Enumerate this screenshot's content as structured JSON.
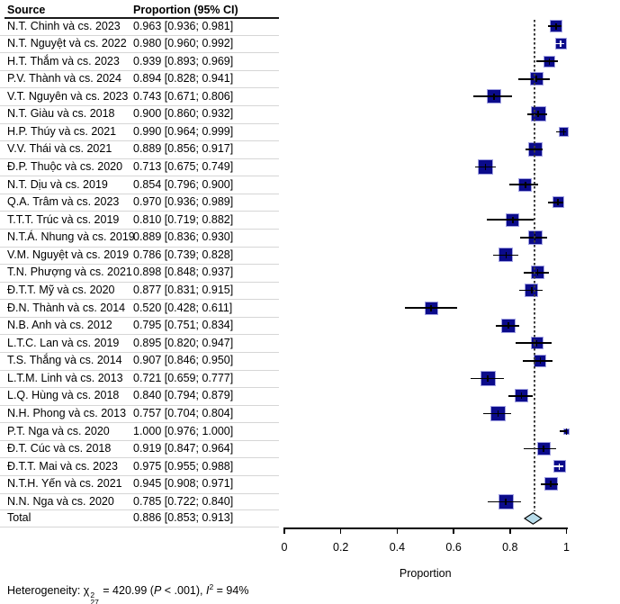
{
  "table": {
    "col_source": "Source",
    "col_proportion": "Proportion (95% CI)",
    "total_label": "Total",
    "total_value": "0.886 [0.853; 0.913]"
  },
  "chart_data": {
    "type": "forest",
    "xlabel": "Proportion",
    "xlim": [
      0,
      1
    ],
    "xticks": [
      "0",
      "0.2",
      "0.4",
      "0.6",
      "0.8",
      "1"
    ],
    "ref_line": 0.886,
    "grid": false,
    "studies": [
      {
        "label": "N.T. Chinh và cs. 2023",
        "text": "0.963 [0.936; 0.981]",
        "est": 0.963,
        "lo": 0.936,
        "hi": 0.981,
        "size": 14
      },
      {
        "label": "N.T. Nguyệt và cs. 2022",
        "text": "0.980 [0.960; 0.992]",
        "est": 0.98,
        "lo": 0.96,
        "hi": 0.992,
        "size": 13
      },
      {
        "label": "H.T. Thắm và cs. 2023",
        "text": "0.939 [0.893; 0.969]",
        "est": 0.939,
        "lo": 0.893,
        "hi": 0.969,
        "size": 13
      },
      {
        "label": "P.V. Thành và cs. 2024",
        "text": "0.894 [0.828; 0.941]",
        "est": 0.894,
        "lo": 0.828,
        "hi": 0.941,
        "size": 15
      },
      {
        "label": "V.T. Nguyên và cs. 2023",
        "text": "0.743 [0.671; 0.806]",
        "est": 0.743,
        "lo": 0.671,
        "hi": 0.806,
        "size": 16
      },
      {
        "label": "N.T. Giàu và cs. 2018",
        "text": "0.900 [0.860; 0.932]",
        "est": 0.9,
        "lo": 0.86,
        "hi": 0.932,
        "size": 17
      },
      {
        "label": "H.P. Thúy và cs. 2021",
        "text": "0.990 [0.964; 0.999]",
        "est": 0.99,
        "lo": 0.964,
        "hi": 0.999,
        "size": 11
      },
      {
        "label": "V.V. Thái và cs. 2021",
        "text": "0.889 [0.856; 0.917]",
        "est": 0.889,
        "lo": 0.856,
        "hi": 0.917,
        "size": 16
      },
      {
        "label": "Đ.P. Thuộc và cs. 2020",
        "text": "0.713 [0.675; 0.749]",
        "est": 0.713,
        "lo": 0.675,
        "hi": 0.749,
        "size": 17
      },
      {
        "label": "N.T. Dịu và cs. 2019",
        "text": "0.854 [0.796; 0.900]",
        "est": 0.854,
        "lo": 0.796,
        "hi": 0.9,
        "size": 15
      },
      {
        "label": "Q.A. Trâm và cs. 2023",
        "text": "0.970 [0.936; 0.989]",
        "est": 0.97,
        "lo": 0.936,
        "hi": 0.989,
        "size": 13
      },
      {
        "label": "T.T.T. Trúc và cs. 2019",
        "text": "0.810 [0.719; 0.882]",
        "est": 0.81,
        "lo": 0.719,
        "hi": 0.882,
        "size": 15
      },
      {
        "label": "N.T.Á. Nhung và cs. 2019",
        "text": "0.889 [0.836; 0.930]",
        "est": 0.889,
        "lo": 0.836,
        "hi": 0.93,
        "size": 16
      },
      {
        "label": "V.M. Nguyệt và cs. 2019",
        "text": "0.786 [0.739; 0.828]",
        "est": 0.786,
        "lo": 0.739,
        "hi": 0.828,
        "size": 16
      },
      {
        "label": "T.N. Phượng và cs. 2021",
        "text": "0.898 [0.848; 0.937]",
        "est": 0.898,
        "lo": 0.848,
        "hi": 0.937,
        "size": 15
      },
      {
        "label": "Đ.T.T. Mỹ và cs. 2020",
        "text": "0.877 [0.831; 0.915]",
        "est": 0.877,
        "lo": 0.831,
        "hi": 0.915,
        "size": 15
      },
      {
        "label": "Đ.N. Thành và cs. 2014",
        "text": "0.520 [0.428; 0.611]",
        "est": 0.52,
        "lo": 0.428,
        "hi": 0.611,
        "size": 15
      },
      {
        "label": "N.B. Anh và cs. 2012",
        "text": "0.795 [0.751; 0.834]",
        "est": 0.795,
        "lo": 0.751,
        "hi": 0.834,
        "size": 16
      },
      {
        "label": "L.T.C. Lan và cs. 2019",
        "text": "0.895 [0.820; 0.947]",
        "est": 0.895,
        "lo": 0.82,
        "hi": 0.947,
        "size": 14
      },
      {
        "label": "T.S. Thắng và cs. 2014",
        "text": "0.907 [0.846; 0.950]",
        "est": 0.907,
        "lo": 0.846,
        "hi": 0.95,
        "size": 14
      },
      {
        "label": "L.T.M. Linh và cs. 2013",
        "text": "0.721 [0.659; 0.777]",
        "est": 0.721,
        "lo": 0.659,
        "hi": 0.777,
        "size": 17
      },
      {
        "label": "L.Q. Hùng và cs. 2018",
        "text": "0.840 [0.794; 0.879]",
        "est": 0.84,
        "lo": 0.794,
        "hi": 0.879,
        "size": 15
      },
      {
        "label": "N.H. Phong và cs. 2013",
        "text": "0.757 [0.704; 0.804]",
        "est": 0.757,
        "lo": 0.704,
        "hi": 0.804,
        "size": 17
      },
      {
        "label": "P.T. Nga và cs. 2020",
        "text": "1.000 [0.976; 1.000]",
        "est": 1.0,
        "lo": 0.976,
        "hi": 1.0,
        "size": 7
      },
      {
        "label": "Đ.T. Cúc và cs. 2018",
        "text": "0.919 [0.847; 0.964]",
        "est": 0.919,
        "lo": 0.847,
        "hi": 0.964,
        "size": 15
      },
      {
        "label": "Đ.T.T. Mai và cs. 2023",
        "text": "0.975 [0.955; 0.988]",
        "est": 0.975,
        "lo": 0.955,
        "hi": 0.988,
        "size": 14
      },
      {
        "label": "N.T.H. Yến và cs. 2021",
        "text": "0.945 [0.908; 0.971]",
        "est": 0.945,
        "lo": 0.908,
        "hi": 0.971,
        "size": 15
      },
      {
        "label": "N.N. Nga và cs. 2020",
        "text": "0.785 [0.722; 0.840]",
        "est": 0.785,
        "lo": 0.722,
        "hi": 0.84,
        "size": 17
      }
    ],
    "total": {
      "label": "Total",
      "text": "0.886 [0.853; 0.913]",
      "est": 0.886,
      "lo": 0.853,
      "hi": 0.913
    },
    "colors": {
      "square_fill": "#0b0b8b",
      "square_border": "#a2a2e2",
      "whisker": "#000000",
      "whisker_inside": "#ffffff",
      "ref_line": "#3d3d3d",
      "diamond_fill": "#b7dcea",
      "diamond_border": "#000000",
      "separator": "#d6d6d6",
      "text": "#000000"
    }
  },
  "footer": {
    "label": "Heterogeneity: ",
    "chi": "χ",
    "chi_sup": "2",
    "chi_sub": "27",
    "eq": " = 420.99 (",
    "p": "P",
    "p_tail": " < .001), ",
    "i": "I",
    "i_sup": "2",
    "tail": " = 94%"
  }
}
